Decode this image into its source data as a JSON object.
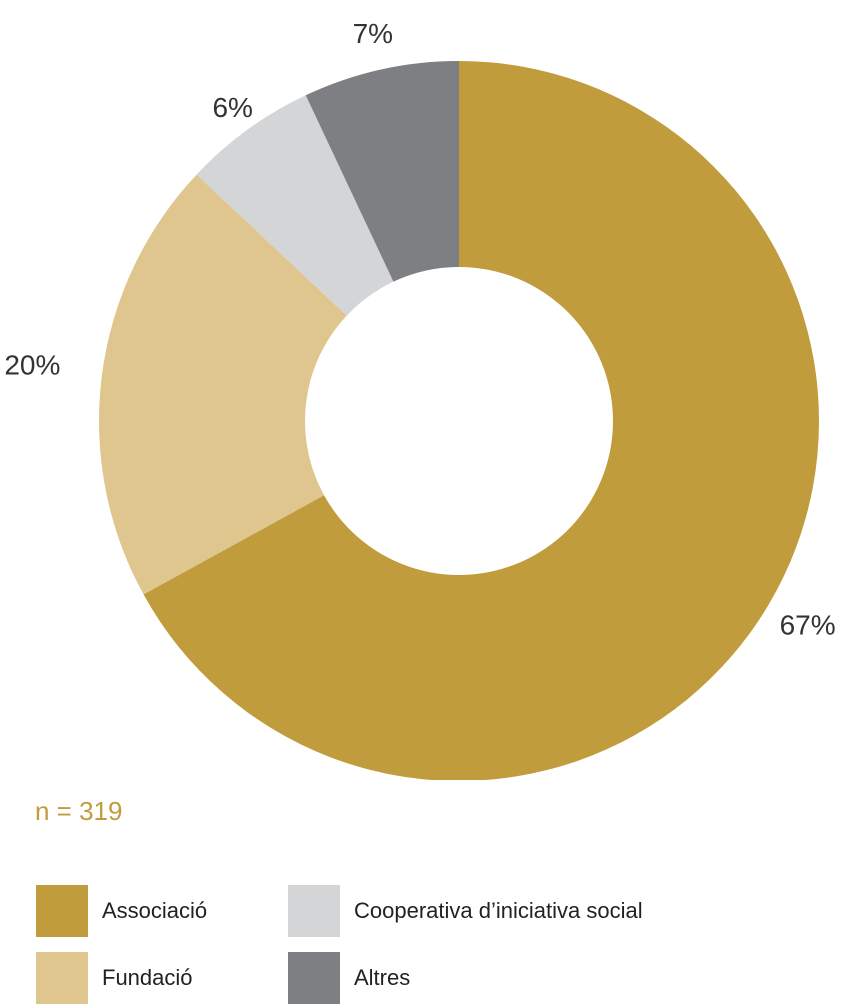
{
  "chart_data": {
    "type": "pie",
    "variant": "donut",
    "slices": [
      {
        "name": "Associació",
        "value": 67,
        "label": "67%",
        "color": "#C09C3D"
      },
      {
        "name": "Fundació",
        "value": 20,
        "label": "20%",
        "color": "#DFC68E"
      },
      {
        "name": "Cooperativa d’iniciativa social",
        "value": 6,
        "label": "6%",
        "color": "#D4D5D7"
      },
      {
        "name": "Altres",
        "value": 7,
        "label": "7%",
        "color": "#7D7F82"
      }
    ],
    "sample_size": "n = 319",
    "legend_placement": "bottom",
    "start": "top",
    "direction": "clockwise"
  },
  "colors": {
    "n_label": "#C09C3D",
    "slice_label": "#333333"
  }
}
